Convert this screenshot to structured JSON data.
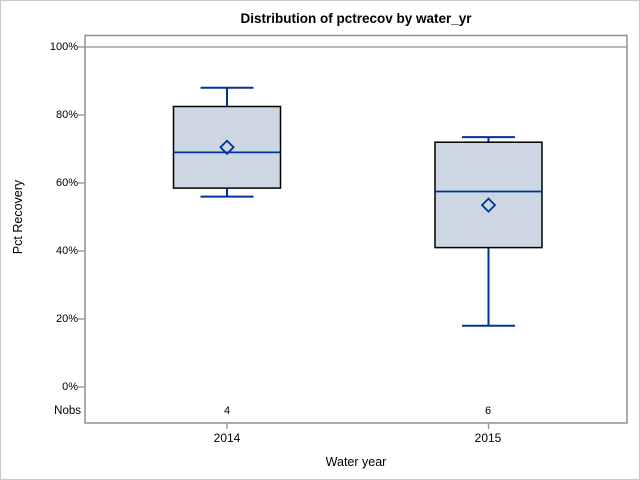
{
  "title": "Distribution of pctrecov by water_yr",
  "y_axis": {
    "label": "Pct Recovery",
    "ticks": [
      "100%",
      "80%",
      "60%",
      "40%",
      "20%",
      "0%"
    ]
  },
  "x_axis": {
    "label": "Water year",
    "categories": [
      "2014",
      "2015"
    ]
  },
  "nobs": {
    "label": "Nobs",
    "values": [
      "4",
      "6"
    ]
  },
  "colors": {
    "box_fill": "#ccd7e3",
    "box_border": "#000000",
    "line_blue": "#003399",
    "axis_gray": "#8f8f8f",
    "text": "#000000",
    "background": "#ffffff"
  },
  "chart_data": {
    "type": "boxplot",
    "title": "Distribution of pctrecov by water_yr",
    "xlabel": "Water year",
    "ylabel": "Pct Recovery",
    "ylim": [
      0,
      100
    ],
    "ytick_values": [
      0,
      20,
      40,
      60,
      80,
      100
    ],
    "ytick_format": "percent",
    "grid": false,
    "reference_line_y": 100,
    "categories": [
      "2014",
      "2015"
    ],
    "series": [
      {
        "category": "2014",
        "nobs": 4,
        "whisker_low": 56,
        "q1": 58.5,
        "median": 69,
        "mean": 70.5,
        "q3": 82.5,
        "whisker_high": 88
      },
      {
        "category": "2015",
        "nobs": 6,
        "whisker_low": 18,
        "q1": 41,
        "median": 57.5,
        "mean": 53.5,
        "q3": 72,
        "whisker_high": 73.5
      }
    ]
  }
}
